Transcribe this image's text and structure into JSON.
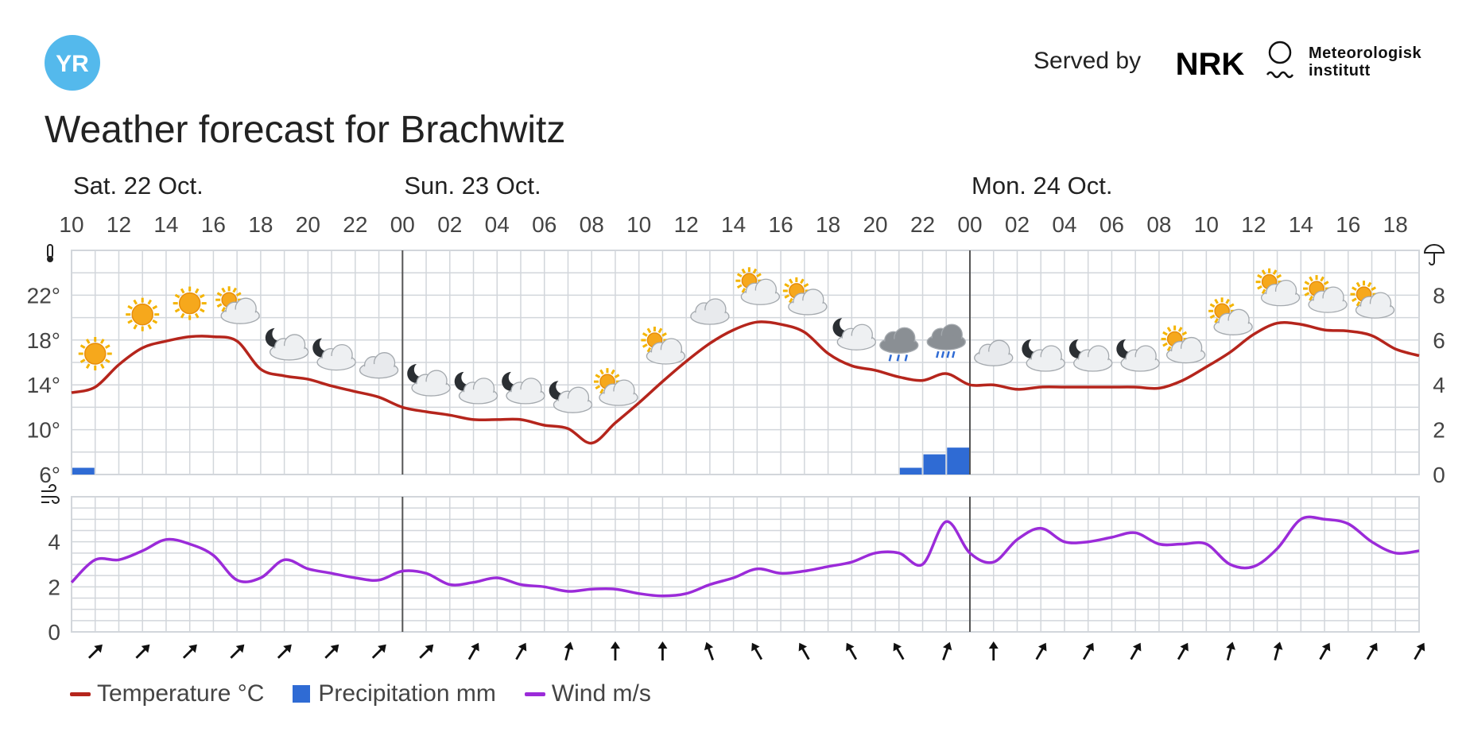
{
  "header": {
    "logo_text": "YR",
    "served_by": "Served by",
    "nrk_text": "NRK",
    "met_line1": "Meteorologisk",
    "met_line2": "institutt"
  },
  "title": "Weather forecast for Brachwitz",
  "colors": {
    "brand_blue": "#54b9ec",
    "temperature": "#b5251c",
    "precipitation": "#2f6bd4",
    "wind": "#9b2bd9",
    "grid": "#d2d6db",
    "midnight": "#555555"
  },
  "legend": {
    "temperature": "Temperature °C",
    "precipitation": "Precipitation mm",
    "wind": "Wind m/s"
  },
  "chart_data": {
    "type": "line",
    "days": [
      {
        "label": "Sat. 22 Oct.",
        "hour_index": 0
      },
      {
        "label": "Sun. 23 Oct.",
        "hour_index": 14
      },
      {
        "label": "Mon. 24 Oct.",
        "hour_index": 38
      }
    ],
    "hour_ticks": [
      "10",
      "12",
      "14",
      "16",
      "18",
      "20",
      "22",
      "00",
      "02",
      "04",
      "06",
      "08",
      "10",
      "12",
      "14",
      "16",
      "18",
      "20",
      "22",
      "00",
      "02",
      "04",
      "06",
      "08",
      "10",
      "12",
      "14",
      "16",
      "18"
    ],
    "midnight_hour_indices": [
      14,
      38
    ],
    "temperature_axis": {
      "ticks": [
        6,
        10,
        14,
        18,
        22
      ],
      "range": [
        6,
        26
      ],
      "labels": [
        "6°",
        "10°",
        "14°",
        "18°",
        "22°"
      ]
    },
    "precipitation_axis": {
      "ticks": [
        0,
        2,
        4,
        6,
        8
      ],
      "range": [
        0,
        10
      ],
      "labels": [
        "0",
        "2",
        "4",
        "6",
        "8"
      ]
    },
    "wind_axis": {
      "ticks": [
        0,
        2,
        4
      ],
      "range": [
        0,
        6
      ],
      "labels": [
        "0",
        "2",
        "4"
      ]
    },
    "temperature_hourly": [
      13.3,
      13.8,
      15.8,
      17.3,
      17.9,
      18.3,
      18.3,
      17.9,
      15.4,
      14.8,
      14.5,
      13.9,
      13.4,
      12.9,
      12.0,
      11.6,
      11.3,
      10.9,
      10.9,
      10.9,
      10.4,
      10.1,
      8.8,
      10.6,
      12.4,
      14.3,
      16.1,
      17.7,
      18.9,
      19.6,
      19.4,
      18.7,
      16.8,
      15.7,
      15.3,
      14.7,
      14.4,
      15.0,
      14.0,
      14.0,
      13.6,
      13.8,
      13.8,
      13.8,
      13.8,
      13.8,
      13.7,
      14.4,
      15.6,
      16.9,
      18.5,
      19.5,
      19.4,
      18.9,
      18.8,
      18.4,
      17.2,
      16.6
    ],
    "precipitation_hourly": [
      0.3,
      0.0,
      0.0,
      0.0,
      0.0,
      0.0,
      0.0,
      0.0,
      0.0,
      0.0,
      0.0,
      0.0,
      0.0,
      0.0,
      0.0,
      0.0,
      0.0,
      0.0,
      0.0,
      0.0,
      0.0,
      0.0,
      0.0,
      0.0,
      0.0,
      0.0,
      0.0,
      0.0,
      0.0,
      0.0,
      0.0,
      0.0,
      0.0,
      0.0,
      0.0,
      0.3,
      0.9,
      1.2,
      0.0,
      0.0,
      0.0,
      0.0,
      0.0,
      0.0,
      0.0,
      0.0,
      0.0,
      0.0,
      0.0,
      0.0,
      0.0,
      0.0,
      0.0,
      0.0,
      0.0,
      0.0,
      0.0
    ],
    "wind_hourly": [
      2.2,
      3.2,
      3.2,
      3.6,
      4.1,
      3.9,
      3.4,
      2.3,
      2.4,
      3.2,
      2.8,
      2.6,
      2.4,
      2.3,
      2.7,
      2.6,
      2.1,
      2.2,
      2.4,
      2.1,
      2.0,
      1.8,
      1.9,
      1.9,
      1.7,
      1.6,
      1.7,
      2.1,
      2.4,
      2.8,
      2.6,
      2.7,
      2.9,
      3.1,
      3.5,
      3.5,
      3.0,
      4.9,
      3.5,
      3.1,
      4.1,
      4.6,
      4.0,
      4.0,
      4.2,
      4.4,
      3.9,
      3.9,
      3.9,
      3.0,
      2.9,
      3.7,
      5.0,
      5.0,
      4.8,
      4.0,
      3.5,
      3.6
    ],
    "symbols": [
      {
        "hour_index": 1,
        "icon": "sun-icon"
      },
      {
        "hour_index": 3,
        "icon": "sun-icon"
      },
      {
        "hour_index": 5,
        "icon": "sun-icon"
      },
      {
        "hour_index": 7,
        "icon": "partly-cloudy-day-icon"
      },
      {
        "hour_index": 9,
        "icon": "partly-cloudy-night-icon"
      },
      {
        "hour_index": 11,
        "icon": "partly-cloudy-night-icon"
      },
      {
        "hour_index": 13,
        "icon": "cloud-icon"
      },
      {
        "hour_index": 15,
        "icon": "partly-cloudy-night-icon"
      },
      {
        "hour_index": 17,
        "icon": "partly-cloudy-night-icon"
      },
      {
        "hour_index": 19,
        "icon": "partly-cloudy-night-icon"
      },
      {
        "hour_index": 21,
        "icon": "partly-cloudy-night-icon"
      },
      {
        "hour_index": 23,
        "icon": "partly-cloudy-day-icon"
      },
      {
        "hour_index": 25,
        "icon": "partly-cloudy-day-icon"
      },
      {
        "hour_index": 27,
        "icon": "cloud-icon"
      },
      {
        "hour_index": 29,
        "icon": "partly-cloudy-day-icon"
      },
      {
        "hour_index": 31,
        "icon": "partly-cloudy-day-icon"
      },
      {
        "hour_index": 33,
        "icon": "partly-cloudy-night-icon"
      },
      {
        "hour_index": 35,
        "icon": "rain-cloud-icon"
      },
      {
        "hour_index": 37,
        "icon": "heavy-rain-cloud-icon"
      },
      {
        "hour_index": 39,
        "icon": "cloud-icon"
      },
      {
        "hour_index": 41,
        "icon": "partly-cloudy-night-icon"
      },
      {
        "hour_index": 43,
        "icon": "partly-cloudy-night-icon"
      },
      {
        "hour_index": 45,
        "icon": "partly-cloudy-night-icon"
      },
      {
        "hour_index": 47,
        "icon": "partly-cloudy-day-icon"
      },
      {
        "hour_index": 49,
        "icon": "partly-cloudy-day-icon"
      },
      {
        "hour_index": 51,
        "icon": "partly-cloudy-day-icon"
      },
      {
        "hour_index": 53,
        "icon": "partly-cloudy-day-icon"
      },
      {
        "hour_index": 55,
        "icon": "partly-cloudy-day-icon"
      }
    ],
    "wind_direction_arrows_deg": [
      45,
      45,
      45,
      45,
      45,
      45,
      45,
      45,
      30,
      30,
      15,
      0,
      0,
      -20,
      -30,
      -30,
      -30,
      -30,
      20,
      0,
      30,
      30,
      30,
      30,
      15,
      15,
      30,
      30,
      30
    ],
    "wind_direction_arrow_labels": [
      "↗",
      "↗",
      "↗",
      "↗",
      "↗",
      "↗",
      "↗",
      "↗",
      "↗",
      "↗",
      "↑",
      "↑",
      "↑",
      "↖",
      "↖",
      "↖",
      "↖",
      "↖",
      "↑",
      "↑",
      "↗",
      "↗",
      "↗",
      "↗",
      "↑",
      "↑",
      "↗",
      "↗",
      "↗"
    ]
  }
}
